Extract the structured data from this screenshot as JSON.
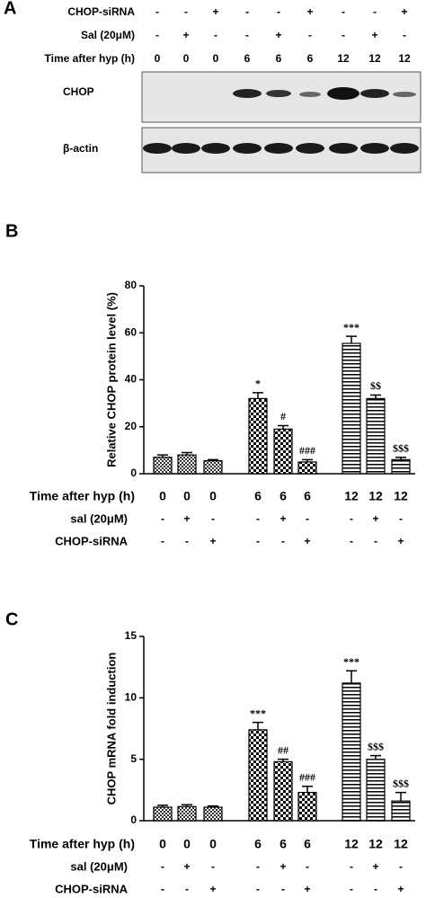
{
  "blot": {
    "panel": "A",
    "rows": [
      {
        "label": "CHOP-siRNA",
        "values": [
          "-",
          "-",
          "+",
          "-",
          "-",
          "+",
          "-",
          "-",
          "+"
        ]
      },
      {
        "label": "Sal (20μM)",
        "values": [
          "-",
          "+",
          "-",
          "-",
          "+",
          "-",
          "-",
          "+",
          "-"
        ]
      },
      {
        "label": "Time after hyp (h)",
        "values": [
          "0",
          "0",
          "0",
          "6",
          "6",
          "6",
          "12",
          "12",
          "12"
        ]
      }
    ],
    "bands": [
      "CHOP",
      "β-actin"
    ]
  },
  "chart_data": [
    {
      "type": "bar",
      "panel": "B",
      "y_label": "Relative CHOP protein  level (%)",
      "ylim": [
        0,
        80
      ],
      "yticks": [
        0,
        20,
        40,
        60,
        80
      ],
      "values": [
        7,
        8,
        5.5,
        32,
        19,
        5,
        55.5,
        32,
        6
      ],
      "errors": [
        1,
        1,
        0.5,
        2.5,
        1.5,
        1,
        3,
        1.5,
        1
      ],
      "annotations": [
        null,
        null,
        null,
        "*",
        "#",
        "###",
        "***",
        "$$",
        "$$$"
      ],
      "conditions": [
        {
          "label": "Time after hyp (h)",
          "values": [
            "0",
            "0",
            "0",
            "6",
            "6",
            "6",
            "12",
            "12",
            "12"
          ]
        },
        {
          "label": "sal (20μM)",
          "values": [
            "-",
            "+",
            "-",
            "-",
            "+",
            "-",
            "-",
            "+",
            "-"
          ]
        },
        {
          "label": "CHOP-siRNA",
          "values": [
            "-",
            "-",
            "+",
            "-",
            "-",
            "+",
            "-",
            "-",
            "+"
          ]
        }
      ]
    },
    {
      "type": "bar",
      "panel": "C",
      "y_label": "CHOP mRNA fold induction",
      "ylim": [
        0,
        15
      ],
      "yticks": [
        0,
        5,
        10,
        15
      ],
      "values": [
        1.1,
        1.15,
        1.1,
        7.4,
        4.8,
        2.3,
        11.2,
        5.0,
        1.6
      ],
      "errors": [
        0.15,
        0.15,
        0.1,
        0.6,
        0.2,
        0.5,
        1.0,
        0.3,
        0.7
      ],
      "annotations": [
        null,
        null,
        null,
        "***",
        "##",
        "###",
        "***",
        "$$$",
        "$$$"
      ],
      "conditions": [
        {
          "label": "Time after hyp (h)",
          "values": [
            "0",
            "0",
            "0",
            "6",
            "6",
            "6",
            "12",
            "12",
            "12"
          ]
        },
        {
          "label": "sal (20μM)",
          "values": [
            "-",
            "+",
            "-",
            "-",
            "+",
            "-",
            "-",
            "+",
            "-"
          ]
        },
        {
          "label": "CHOP-siRNA",
          "values": [
            "-",
            "-",
            "+",
            "-",
            "-",
            "+",
            "-",
            "-",
            "+"
          ]
        }
      ]
    }
  ]
}
